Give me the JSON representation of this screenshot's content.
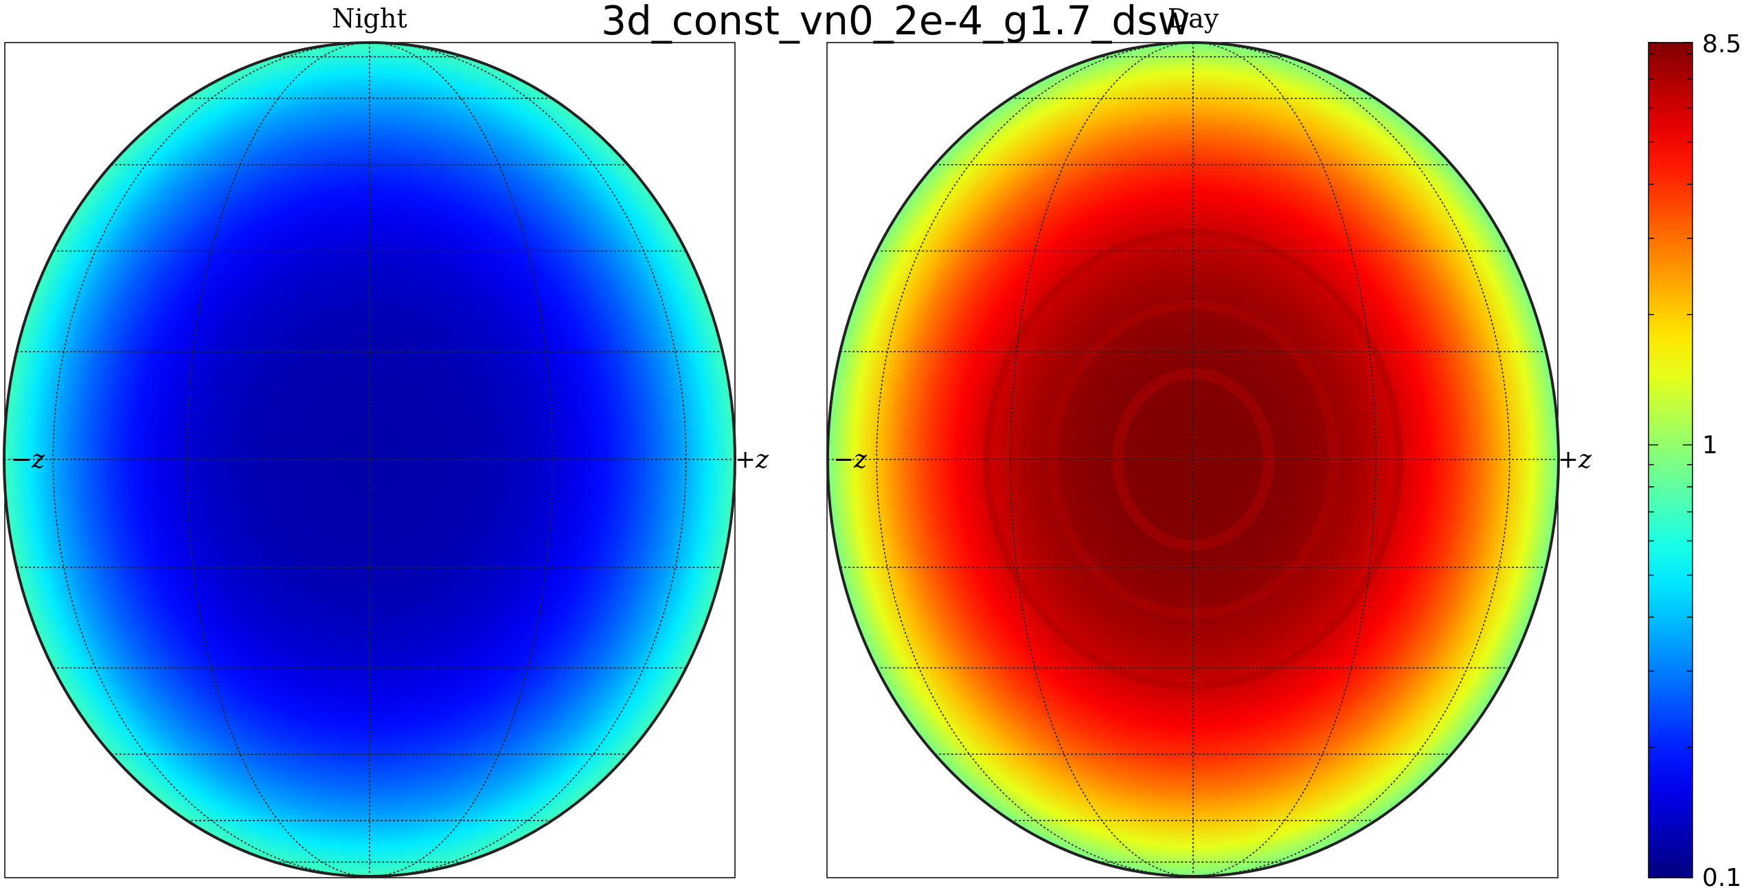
{
  "title": "3d_const_vn0_2e-4_g1.7_dsw",
  "chart_data": {
    "type": "heatmap",
    "projection": "orthographic",
    "colormap": "jet",
    "color_scale": "log",
    "panels": [
      {
        "title": "Night",
        "left_label": "−z",
        "right_label": "+z",
        "center_value": 0.12,
        "limb_value": 0.7
      },
      {
        "title": "Day",
        "left_label": "−z",
        "right_label": "+z",
        "center_value": 8.5,
        "limb_value": 0.9
      }
    ],
    "colorbar": {
      "min": 0.1,
      "max": 8.5,
      "tick_labels": [
        "8.5",
        "1",
        "0.1"
      ],
      "tick_values": [
        8.5,
        1,
        0.1
      ]
    },
    "grid": true
  }
}
